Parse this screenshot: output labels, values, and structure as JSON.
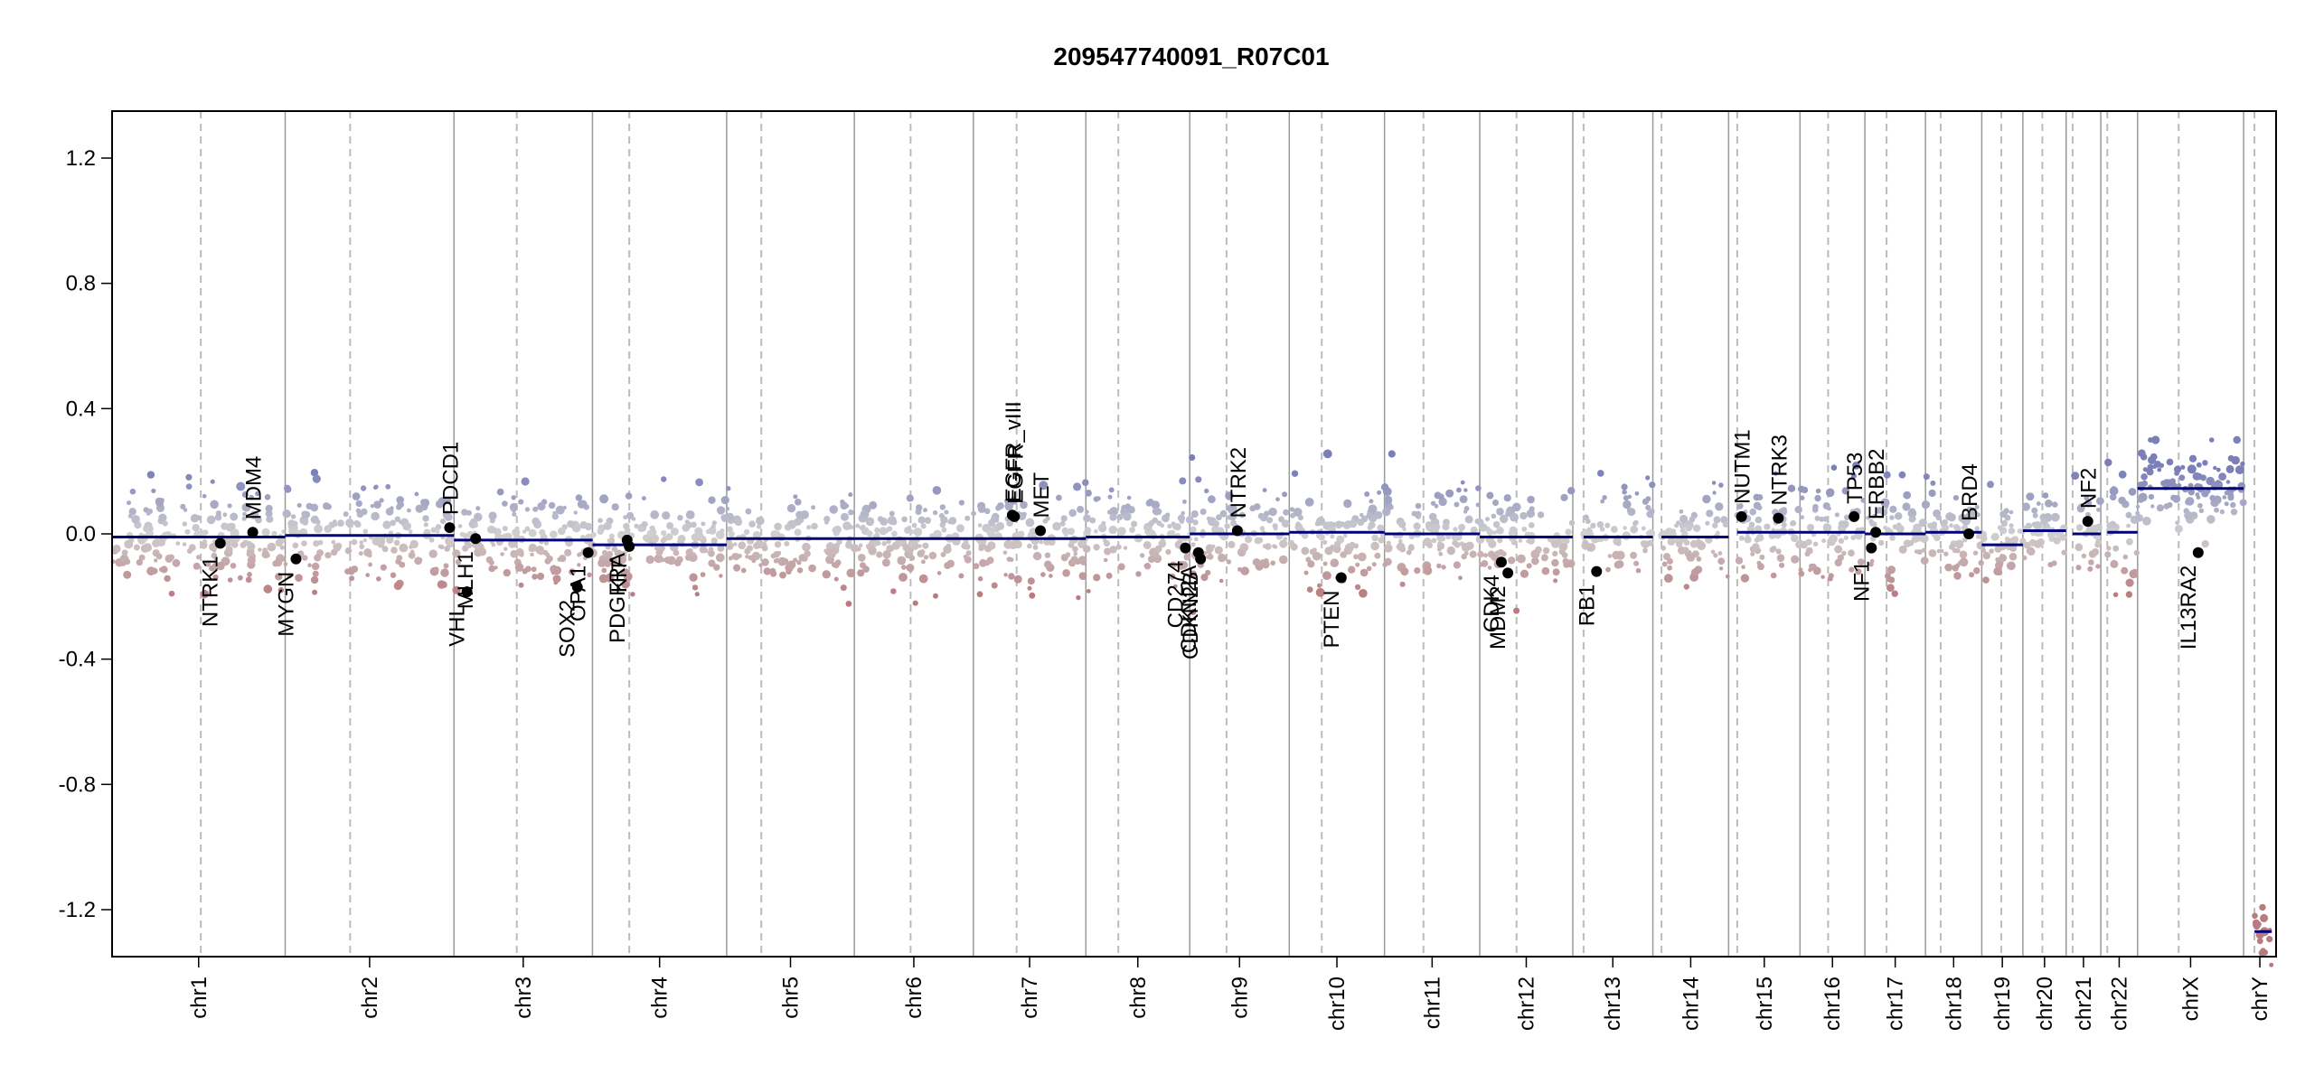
{
  "chart_data": {
    "type": "scatter",
    "title": "209547740091_R07C01",
    "xlabel": "",
    "ylabel": "",
    "ylim": [
      -1.35,
      1.35
    ],
    "y_ticks": [
      "1.2",
      "0.8",
      "0.4",
      "0.0",
      "-0.4",
      "-0.8",
      "-1.2"
    ],
    "y_tick_values": [
      1.2,
      0.8,
      0.4,
      0.0,
      -0.4,
      -0.8,
      -1.2
    ],
    "grid": false,
    "colors": {
      "gain": "#7b7fb8",
      "loss": "#b87b7f",
      "neutral": "#d0d0d0",
      "segment": "#00007a",
      "chrom_border": "#999999",
      "centromere": "#bbbbbb"
    },
    "chromosomes": [
      {
        "name": "chr1",
        "start": 0.0,
        "end": 0.08,
        "centromere": 0.041,
        "segments": [
          {
            "from": 0.0,
            "to": 0.08,
            "value": -0.01
          }
        ]
      },
      {
        "name": "chr2",
        "start": 0.08,
        "end": 0.158,
        "centromere": 0.11,
        "segments": [
          {
            "from": 0.08,
            "to": 0.158,
            "value": -0.005
          }
        ]
      },
      {
        "name": "chr3",
        "start": 0.158,
        "end": 0.222,
        "centromere": 0.187,
        "segments": [
          {
            "from": 0.158,
            "to": 0.222,
            "value": -0.02
          }
        ]
      },
      {
        "name": "chr4",
        "start": 0.222,
        "end": 0.284,
        "centromere": 0.239,
        "segments": [
          {
            "from": 0.222,
            "to": 0.284,
            "value": -0.035
          }
        ]
      },
      {
        "name": "chr5",
        "start": 0.284,
        "end": 0.343,
        "centromere": 0.3,
        "segments": [
          {
            "from": 0.284,
            "to": 0.343,
            "value": -0.015
          }
        ]
      },
      {
        "name": "chr6",
        "start": 0.343,
        "end": 0.398,
        "centromere": 0.369,
        "segments": [
          {
            "from": 0.343,
            "to": 0.398,
            "value": -0.015
          }
        ]
      },
      {
        "name": "chr7",
        "start": 0.398,
        "end": 0.45,
        "centromere": 0.418,
        "segments": [
          {
            "from": 0.398,
            "to": 0.45,
            "value": -0.015
          }
        ]
      },
      {
        "name": "chr8",
        "start": 0.45,
        "end": 0.498,
        "centromere": 0.465,
        "segments": [
          {
            "from": 0.45,
            "to": 0.498,
            "value": -0.01
          }
        ]
      },
      {
        "name": "chr9",
        "start": 0.498,
        "end": 0.544,
        "centromere": 0.515,
        "segments": [
          {
            "from": 0.498,
            "to": 0.544,
            "value": 0.0
          }
        ]
      },
      {
        "name": "chr10",
        "start": 0.544,
        "end": 0.588,
        "centromere": 0.559,
        "segments": [
          {
            "from": 0.544,
            "to": 0.588,
            "value": 0.005
          }
        ]
      },
      {
        "name": "chr11",
        "start": 0.588,
        "end": 0.632,
        "centromere": 0.606,
        "segments": [
          {
            "from": 0.588,
            "to": 0.632,
            "value": 0.0
          }
        ]
      },
      {
        "name": "chr12",
        "start": 0.632,
        "end": 0.675,
        "centromere": 0.649,
        "segments": [
          {
            "from": 0.632,
            "to": 0.675,
            "value": -0.01
          }
        ]
      },
      {
        "name": "chr13",
        "start": 0.675,
        "end": 0.712,
        "centromere": 0.68,
        "segments": [
          {
            "from": 0.68,
            "to": 0.712,
            "value": -0.01
          }
        ]
      },
      {
        "name": "chr14",
        "start": 0.712,
        "end": 0.747,
        "centromere": 0.716,
        "segments": [
          {
            "from": 0.716,
            "to": 0.747,
            "value": -0.01
          }
        ]
      },
      {
        "name": "chr15",
        "start": 0.747,
        "end": 0.78,
        "centromere": 0.751,
        "segments": [
          {
            "from": 0.751,
            "to": 0.78,
            "value": 0.005
          }
        ]
      },
      {
        "name": "chr16",
        "start": 0.78,
        "end": 0.81,
        "centromere": 0.793,
        "segments": [
          {
            "from": 0.78,
            "to": 0.81,
            "value": 0.005
          }
        ]
      },
      {
        "name": "chr17",
        "start": 0.81,
        "end": 0.838,
        "centromere": 0.82,
        "segments": [
          {
            "from": 0.81,
            "to": 0.838,
            "value": 0.0
          }
        ]
      },
      {
        "name": "chr18",
        "start": 0.838,
        "end": 0.864,
        "centromere": 0.845,
        "segments": [
          {
            "from": 0.838,
            "to": 0.864,
            "value": 0.005
          }
        ]
      },
      {
        "name": "chr19",
        "start": 0.864,
        "end": 0.883,
        "centromere": 0.873,
        "segments": [
          {
            "from": 0.864,
            "to": 0.883,
            "value": -0.035
          }
        ]
      },
      {
        "name": "chr20",
        "start": 0.883,
        "end": 0.903,
        "centromere": 0.892,
        "segments": [
          {
            "from": 0.883,
            "to": 0.903,
            "value": 0.01
          }
        ]
      },
      {
        "name": "chr21",
        "start": 0.903,
        "end": 0.919,
        "centromere": 0.906,
        "segments": [
          {
            "from": 0.906,
            "to": 0.919,
            "value": 0.0
          }
        ]
      },
      {
        "name": "chr22",
        "start": 0.919,
        "end": 0.936,
        "centromere": 0.922,
        "segments": [
          {
            "from": 0.922,
            "to": 0.936,
            "value": 0.005
          }
        ]
      },
      {
        "name": "chrX",
        "start": 0.936,
        "end": 0.985,
        "centromere": 0.955,
        "segments": [
          {
            "from": 0.936,
            "to": 0.985,
            "value": 0.145
          }
        ]
      },
      {
        "name": "chrY",
        "start": 0.985,
        "end": 1.0,
        "centromere": 0.99,
        "segments": [
          {
            "from": 0.99,
            "to": 0.998,
            "value": -1.27
          }
        ]
      }
    ],
    "genes": [
      {
        "name": "NTRK1",
        "x": 0.05,
        "y": -0.03,
        "side": "below"
      },
      {
        "name": "MDM4",
        "x": 0.065,
        "y": 0.005,
        "side": "above"
      },
      {
        "name": "MYGN",
        "x": 0.085,
        "y": -0.08,
        "side": "below"
      },
      {
        "name": "PDCD1",
        "x": 0.156,
        "y": 0.02,
        "side": "above"
      },
      {
        "name": "VHL",
        "x": 0.164,
        "y": -0.185,
        "side": "below"
      },
      {
        "name": "MLH1",
        "x": 0.168,
        "y": -0.015,
        "side": "below"
      },
      {
        "name": "SOX2",
        "x": 0.215,
        "y": -0.17,
        "side": "below"
      },
      {
        "name": "OPA1",
        "x": 0.22,
        "y": -0.06,
        "side": "below"
      },
      {
        "name": "PDGFRA",
        "x": 0.238,
        "y": -0.02,
        "side": "below"
      },
      {
        "name": "KIT",
        "x": 0.239,
        "y": -0.04,
        "side": "below"
      },
      {
        "name": "EGFR_vIII",
        "x": 0.416,
        "y": 0.06,
        "side": "above"
      },
      {
        "name": "EGFR",
        "x": 0.417,
        "y": 0.055,
        "side": "above"
      },
      {
        "name": "MET",
        "x": 0.429,
        "y": 0.01,
        "side": "above"
      },
      {
        "name": "CD274",
        "x": 0.496,
        "y": -0.045,
        "side": "below"
      },
      {
        "name": "CDKN2A",
        "x": 0.502,
        "y": -0.06,
        "side": "below"
      },
      {
        "name": "CDKN2B",
        "x": 0.503,
        "y": -0.08,
        "side": "below"
      },
      {
        "name": "NTRK2",
        "x": 0.52,
        "y": 0.01,
        "side": "above"
      },
      {
        "name": "PTEN",
        "x": 0.568,
        "y": -0.14,
        "side": "below"
      },
      {
        "name": "CDK4",
        "x": 0.642,
        "y": -0.09,
        "side": "below"
      },
      {
        "name": "MDM2",
        "x": 0.645,
        "y": -0.125,
        "side": "below"
      },
      {
        "name": "RB1",
        "x": 0.686,
        "y": -0.12,
        "side": "below"
      },
      {
        "name": "NUTM1",
        "x": 0.753,
        "y": 0.055,
        "side": "above"
      },
      {
        "name": "NTRK3",
        "x": 0.77,
        "y": 0.05,
        "side": "above"
      },
      {
        "name": "TP53",
        "x": 0.805,
        "y": 0.055,
        "side": "above"
      },
      {
        "name": "NF1",
        "x": 0.813,
        "y": -0.045,
        "side": "below"
      },
      {
        "name": "ERBB2",
        "x": 0.815,
        "y": 0.005,
        "side": "above"
      },
      {
        "name": "BRD4",
        "x": 0.858,
        "y": 0.0,
        "side": "above"
      },
      {
        "name": "NF2",
        "x": 0.913,
        "y": 0.04,
        "side": "above"
      },
      {
        "name": "IL13RA2",
        "x": 0.964,
        "y": -0.06,
        "side": "below"
      }
    ]
  }
}
